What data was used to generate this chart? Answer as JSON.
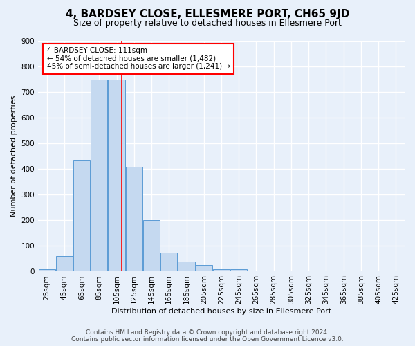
{
  "title": "4, BARDSEY CLOSE, ELLESMERE PORT, CH65 9JD",
  "subtitle": "Size of property relative to detached houses in Ellesmere Port",
  "xlabel": "Distribution of detached houses by size in Ellesmere Port",
  "ylabel": "Number of detached properties",
  "footer_line1": "Contains HM Land Registry data © Crown copyright and database right 2024.",
  "footer_line2": "Contains public sector information licensed under the Open Government Licence v3.0.",
  "bins": [
    25,
    45,
    65,
    85,
    105,
    125,
    145,
    165,
    185,
    205,
    225,
    245,
    265,
    285,
    305,
    325,
    345,
    365,
    385,
    405,
    425
  ],
  "counts": [
    10,
    60,
    435,
    750,
    750,
    410,
    200,
    75,
    40,
    25,
    10,
    10,
    0,
    0,
    0,
    0,
    0,
    0,
    0,
    5,
    0
  ],
  "bar_color": "#c5d9f0",
  "bar_edge_color": "#5b9bd5",
  "property_size": 111,
  "annotation_line1": "4 BARDSEY CLOSE: 111sqm",
  "annotation_line2": "← 54% of detached houses are smaller (1,482)",
  "annotation_line3": "45% of semi-detached houses are larger (1,241) →",
  "annotation_box_color": "white",
  "annotation_box_edge_color": "red",
  "vline_color": "red",
  "ylim": [
    0,
    900
  ],
  "yticks": [
    0,
    100,
    200,
    300,
    400,
    500,
    600,
    700,
    800,
    900
  ],
  "background_color": "#e8f0fa",
  "plot_bg_color": "#e8f0fa",
  "grid_color": "white",
  "title_fontsize": 11,
  "subtitle_fontsize": 9,
  "axis_label_fontsize": 8,
  "tick_fontsize": 7.5,
  "annotation_fontsize": 7.5,
  "footer_fontsize": 6.5
}
